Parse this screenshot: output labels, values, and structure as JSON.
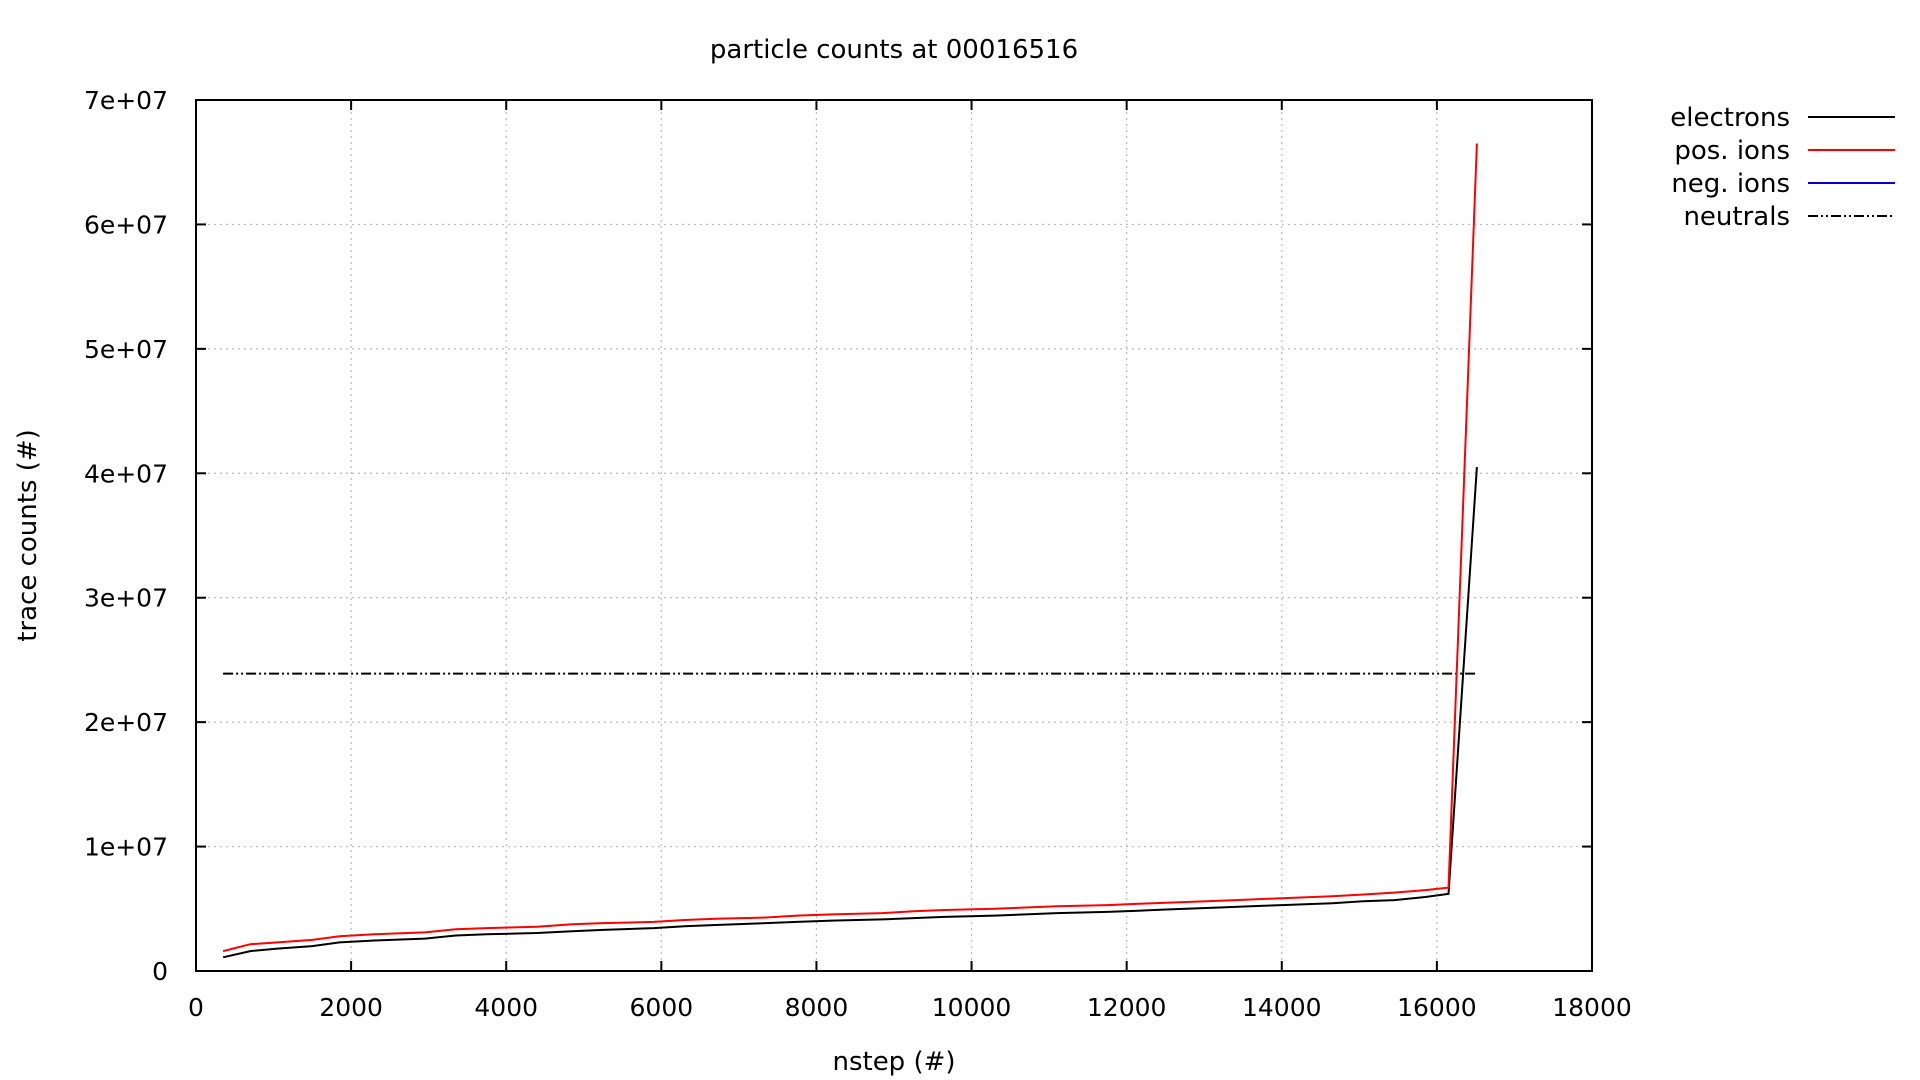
{
  "chart_data": {
    "type": "line",
    "title": "particle counts at 00016516",
    "xlabel": "nstep (#)",
    "ylabel": "trace counts (#)",
    "xlim": [
      0,
      18000
    ],
    "ylim": [
      0,
      70000000
    ],
    "x_ticks": [
      0,
      2000,
      4000,
      6000,
      8000,
      10000,
      12000,
      14000,
      16000,
      18000
    ],
    "x_tick_labels": [
      "0",
      "2000",
      "4000",
      "6000",
      "8000",
      "10000",
      "12000",
      "14000",
      "16000",
      "18000"
    ],
    "y_ticks": [
      0,
      10000000,
      20000000,
      30000000,
      40000000,
      50000000,
      60000000,
      70000000
    ],
    "y_tick_labels": [
      "0",
      "1e+07",
      "2e+07",
      "3e+07",
      "4e+07",
      "5e+07",
      "6e+07",
      "7e+07"
    ],
    "grid": true,
    "legend_position": "outside-top-right",
    "series": [
      {
        "name": "electrons",
        "color": "#000000",
        "dash": "solid",
        "x": [
          350,
          700,
          1050,
          1500,
          1850,
          2300,
          2950,
          3350,
          3750,
          4400,
          4850,
          5250,
          5900,
          6300,
          6700,
          7350,
          7750,
          8200,
          8850,
          9250,
          9650,
          10300,
          10700,
          11100,
          11750,
          12150,
          12550,
          13200,
          13600,
          14000,
          14650,
          15050,
          15450,
          15850,
          16150,
          16516
        ],
        "y": [
          1100000,
          1600000,
          1800000,
          2000000,
          2300000,
          2450000,
          2600000,
          2850000,
          2950000,
          3050000,
          3200000,
          3300000,
          3450000,
          3600000,
          3700000,
          3850000,
          3950000,
          4050000,
          4150000,
          4250000,
          4350000,
          4450000,
          4550000,
          4650000,
          4750000,
          4850000,
          4950000,
          5100000,
          5200000,
          5300000,
          5450000,
          5600000,
          5700000,
          5950000,
          6200000,
          40500000
        ]
      },
      {
        "name": "pos. ions",
        "color": "#ff0000",
        "dash": "solid",
        "x": [
          350,
          700,
          1050,
          1500,
          1850,
          2300,
          2950,
          3350,
          3750,
          4400,
          4850,
          5250,
          5900,
          6300,
          6700,
          7350,
          7750,
          8200,
          8850,
          9250,
          9650,
          10300,
          10700,
          11100,
          11750,
          12150,
          12550,
          13200,
          13600,
          14000,
          14650,
          15050,
          15450,
          15850,
          16150,
          16516
        ],
        "y": [
          1600000,
          2150000,
          2300000,
          2500000,
          2800000,
          2950000,
          3100000,
          3350000,
          3450000,
          3550000,
          3750000,
          3850000,
          3950000,
          4100000,
          4200000,
          4300000,
          4450000,
          4550000,
          4650000,
          4800000,
          4900000,
          5000000,
          5100000,
          5200000,
          5300000,
          5400000,
          5500000,
          5650000,
          5750000,
          5850000,
          6000000,
          6150000,
          6300000,
          6500000,
          6700000,
          66500000
        ]
      },
      {
        "name": "neg. ions",
        "color": "#0000cc",
        "dash": "solid",
        "x": [
          350,
          16516
        ],
        "y": [
          0,
          0
        ]
      },
      {
        "name": "neutrals",
        "color": "#000000",
        "dash": "dash-dot-dot",
        "x": [
          350,
          16516
        ],
        "y": [
          23900000,
          23900000
        ]
      }
    ]
  }
}
